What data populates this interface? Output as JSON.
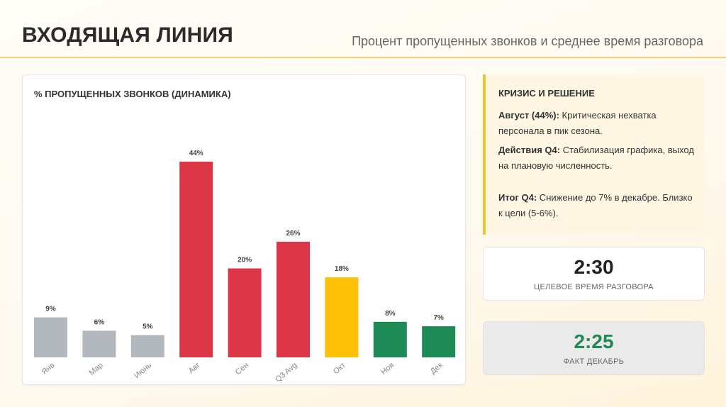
{
  "header": {
    "title": "ВХОДЯЩАЯ ЛИНИЯ",
    "subtitle": "Процент пропущенных звонков и среднее время разговора"
  },
  "chart_card": {
    "title": "% ПРОПУЩЕННЫХ ЗВОНКОВ (ДИНАМИКА)"
  },
  "chart_data": {
    "type": "bar",
    "title": "% ПРОПУЩЕННЫХ ЗВОНКОВ (ДИНАМИКА)",
    "categories": [
      "Янв",
      "Мар",
      "Июнь",
      "Авг",
      "Сен",
      "Q3 Avg",
      "Окт",
      "Ноя",
      "Дек"
    ],
    "values": [
      9,
      6,
      5,
      44,
      20,
      26,
      18,
      8,
      7
    ],
    "value_labels": [
      "9%",
      "6%",
      "5%",
      "44%",
      "20%",
      "26%",
      "18%",
      "8%",
      "7%"
    ],
    "bar_colors": [
      "#b3b8bf",
      "#b3b8bf",
      "#b3b8bf",
      "#dc3545",
      "#dc3545",
      "#dc3545",
      "#ffc107",
      "#1e8a55",
      "#1e8a55"
    ],
    "ylim": [
      0,
      44
    ],
    "grid": false,
    "xlabel": "",
    "ylabel": ""
  },
  "crisis": {
    "title": "КРИЗИС И РЕШЕНИЕ",
    "p1_bold": "Август (44%):",
    "p1_text": " Критическая нехватка персонала в пик сезона.",
    "p2_bold": "Действия Q4:",
    "p2_text": " Стабилизация графика, выход на плановую численность.",
    "p3_bold": "Итог Q4:",
    "p3_text": " Снижение до 7% в декабре. Близко к цели (5-6%)."
  },
  "metrics": [
    {
      "value": "2:30",
      "label": "ЦЕЛЕВОЕ ВРЕМЯ РАЗГОВОРА"
    },
    {
      "value": "2:25",
      "label": "ФАКТ ДЕКАБРЬ"
    }
  ],
  "colors": {
    "accent": "#f2c230",
    "red": "#dc3545",
    "grey": "#b3b8bf",
    "yellow": "#ffc107",
    "green": "#1e8a55"
  }
}
